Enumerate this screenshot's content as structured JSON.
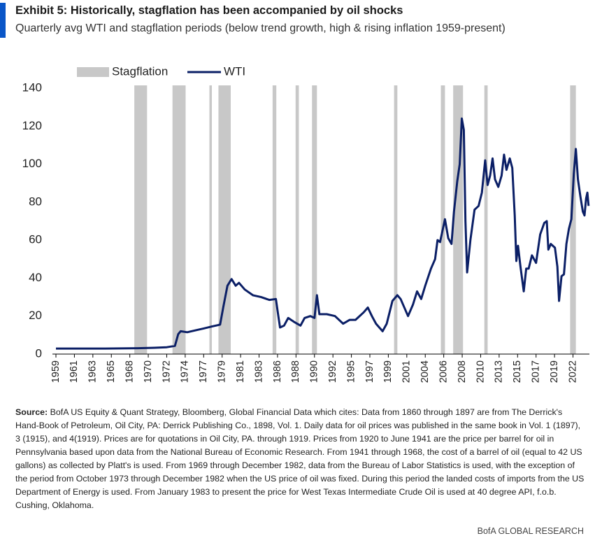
{
  "chart_data": {
    "type": "line",
    "title": "Exhibit 5: Historically, stagflation has been accompanied by oil shocks",
    "subtitle": "Quarterly avg WTI and stagflation periods (below trend growth, high & rising inflation 1959-present)",
    "x": [
      1959,
      1965,
      1969,
      1971,
      1972.5,
      1973.5,
      1973.9,
      1974.2,
      1975,
      1976,
      1977,
      1978,
      1979,
      1979.4,
      1979.9,
      1980.4,
      1980.9,
      1981.3,
      1982,
      1983,
      1984,
      1985,
      1985.8,
      1986.1,
      1986.3,
      1986.8,
      1987.3,
      1988,
      1988.8,
      1989.3,
      1990,
      1990.5,
      1990.8,
      1991.1,
      1992,
      1993,
      1994,
      1994.8,
      1995.5,
      1996.5,
      1997,
      1997.5,
      1998,
      1998.8,
      1999.3,
      2000,
      2000.6,
      2001,
      2001.9,
      2002.5,
      2003,
      2003.5,
      2004,
      2004.7,
      2005.2,
      2005.5,
      2005.8,
      2006.4,
      2006.8,
      2007.2,
      2007.5,
      2007.9,
      2008.2,
      2008.45,
      2008.7,
      2008.9,
      2009.1,
      2009.5,
      2010,
      2010.5,
      2010.9,
      2011.3,
      2011.6,
      2011.9,
      2012.2,
      2012.5,
      2012.9,
      2013.3,
      2013.6,
      2013.9,
      2014.3,
      2014.6,
      2014.9,
      2015.1,
      2015.3,
      2015.6,
      2016,
      2016.3,
      2016.6,
      2017,
      2017.5,
      2018,
      2018.5,
      2018.8,
      2019,
      2019.3,
      2019.8,
      2020.1,
      2020.3,
      2020.6,
      2020.9,
      2021.2,
      2021.5,
      2021.8,
      2022.1,
      2022.35,
      2022.6,
      2022.9,
      2023.2,
      2023.4,
      2023.6,
      2023.75,
      2023.9
    ],
    "series": [
      {
        "name": "WTI",
        "color": "#0b1f66",
        "values": [
          2.9,
          2.9,
          3.1,
          3.3,
          3.6,
          4.3,
          10.5,
          12,
          11.5,
          12.5,
          13.5,
          14.5,
          15.5,
          25,
          36,
          39.5,
          36,
          37.5,
          34,
          31,
          30,
          28.5,
          29,
          20,
          14,
          15,
          19,
          17,
          15,
          19,
          20,
          19,
          31,
          21,
          21,
          20,
          16,
          18,
          18,
          22,
          24.5,
          20,
          16,
          12,
          16,
          28,
          31,
          29,
          20,
          26,
          33,
          29,
          36,
          45,
          50,
          60,
          59,
          71,
          61,
          58,
          75,
          91,
          100,
          124,
          118,
          70,
          43,
          60,
          76,
          78,
          85,
          102,
          89,
          94,
          103,
          92,
          88,
          94,
          105,
          97,
          103,
          98,
          73,
          49,
          57,
          46,
          33,
          45,
          45,
          52,
          48,
          63,
          69,
          70,
          55,
          58,
          56,
          46,
          28,
          41,
          42,
          58,
          66,
          71,
          95,
          108,
          92,
          83,
          75,
          73,
          82,
          85,
          78
        ]
      }
    ],
    "shaded": {
      "name": "Stagflation",
      "color": "#c8c8c8",
      "ranges": [
        [
          1968.55,
          1970.1
        ],
        [
          1973.2,
          1974.8
        ],
        [
          1977.7,
          1978.0
        ],
        [
          1978.8,
          1980.3
        ],
        [
          1985.4,
          1985.85
        ],
        [
          1988.2,
          1988.6
        ],
        [
          1990.2,
          1990.8
        ],
        [
          2000.2,
          2000.6
        ],
        [
          2005.9,
          2006.4
        ],
        [
          2007.4,
          2008.6
        ],
        [
          2011.2,
          2011.6
        ],
        [
          2021.65,
          2022.35
        ]
      ]
    },
    "xlim": [
      1959,
      2024
    ],
    "xticks": [
      1959,
      {
        "value": 1961.25,
        "label": "1961"
      },
      {
        "value": 1963.5,
        "label": "1963"
      },
      {
        "value": 1965.75,
        "label": "1965"
      },
      1968,
      {
        "value": 1970.25,
        "label": "1970"
      },
      {
        "value": 1972.5,
        "label": "1972"
      },
      {
        "value": 1974.75,
        "label": "1974"
      },
      1977,
      {
        "value": 1979.25,
        "label": "1979"
      },
      {
        "value": 1981.5,
        "label": "1981"
      },
      {
        "value": 1983.75,
        "label": "1983"
      },
      1986,
      {
        "value": 1988.25,
        "label": "1988"
      },
      {
        "value": 1990.5,
        "label": "1990"
      },
      {
        "value": 1992.75,
        "label": "1992"
      },
      1995,
      {
        "value": 1997.25,
        "label": "1997"
      },
      {
        "value": 1999.5,
        "label": "1999"
      },
      {
        "value": 2001.75,
        "label": "2001"
      },
      2004,
      {
        "value": 2006.25,
        "label": "2006"
      },
      {
        "value": 2008.5,
        "label": "2008"
      },
      {
        "value": 2010.75,
        "label": "2010"
      },
      2013,
      {
        "value": 2015.25,
        "label": "2015"
      },
      {
        "value": 2017.5,
        "label": "2017"
      },
      {
        "value": 2019.75,
        "label": "2019"
      },
      2022
    ],
    "ylim": [
      0,
      140
    ],
    "yticks": [
      0,
      20,
      40,
      60,
      80,
      100,
      120,
      140
    ]
  },
  "source": {
    "label": "Source:",
    "text": "BofA US Equity & Quant Strategy, Bloomberg, Global Financial Data which cites: Data from 1860 through 1897 are from The Derrick's Hand-Book of Petroleum, Oil City, PA: Derrick Publishing Co., 1898, Vol. 1. Daily data for oil prices was published in the same book in Vol. 1 (1897), 3 (1915), and 4(1919). Prices are for quotations in Oil City, PA. through 1919. Prices from 1920 to June 1941 are the price per barrel for oil in Pennsylvania based upon data from the National Bureau of Economic Research. From 1941 through 1968, the cost of a barrel of oil (equal to 42 US gallons) as collected by Platt's is used. From 1969 through December 1982, data from the Bureau of Labor Statistics is used, with the exception of the period from October 1973 through December 1982 when the US price of oil was fixed. During this period the landed costs of imports from the US Department of Energy is used. From January 1983 to present the price for West Texas Intermediate Crude Oil is used at 40 degree API, f.o.b. Cushing, Oklahoma."
  },
  "brand": "BofA GLOBAL RESEARCH"
}
